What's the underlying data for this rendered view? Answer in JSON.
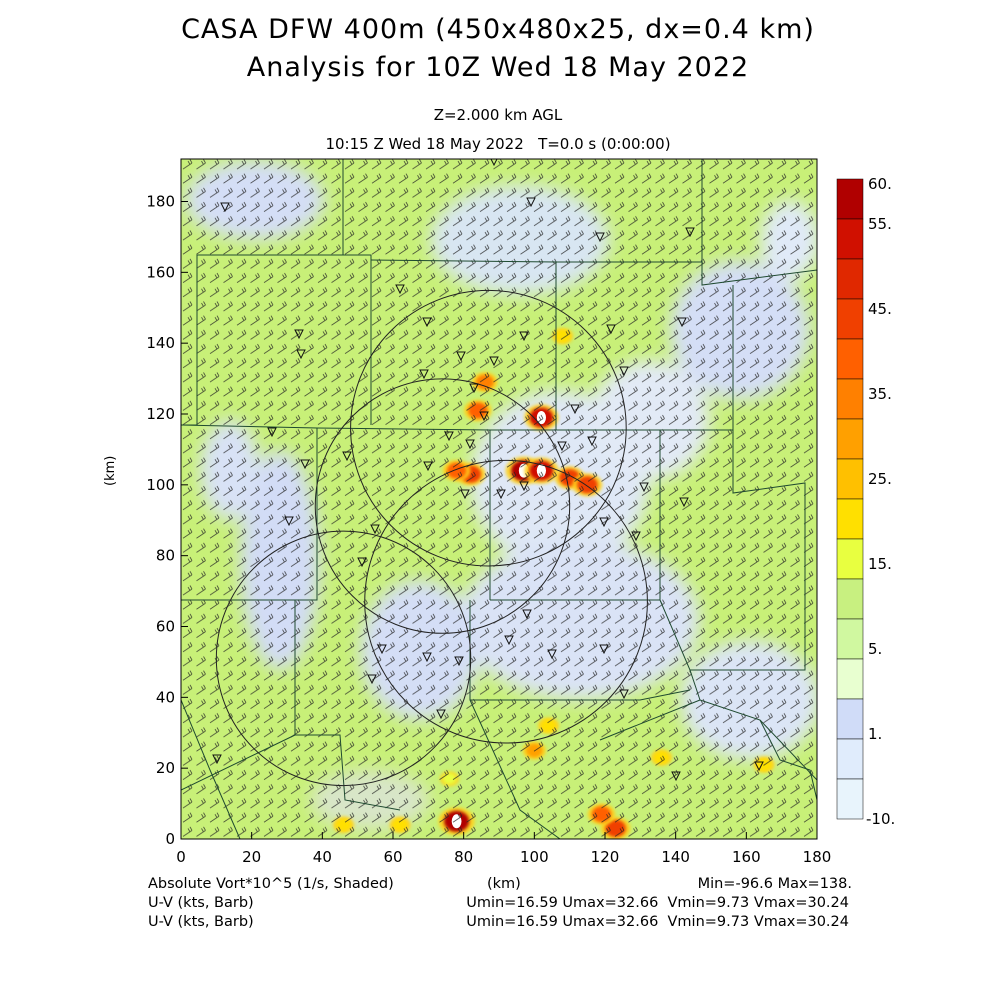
{
  "title": {
    "line1": "CASA DFW 400m (450x480x25, dx=0.4 km)",
    "line2": "Analysis for 10Z Wed 18 May 2022",
    "level": "Z=2.000 km AGL",
    "valid_time": "10:15 Z Wed 18 May 2022   T=0.0 s (0:00:00)"
  },
  "footer": {
    "field": "Absolute Vort*10^5 (1/s, Shaded)",
    "xunit": "(km)",
    "minmax": "Min=-96.6 Max=138.",
    "barb1": "U-V (kts, Barb)",
    "barb2": "U-V (kts, Barb)",
    "uv1": "Umin=16.59 Umax=32.66  Vmin=9.73 Vmax=30.24",
    "uv2": "Umin=16.59 Umax=32.66  Vmin=9.73 Vmax=30.24"
  },
  "chart_data": {
    "type": "heatmap",
    "xlabel": "(km)",
    "ylabel": "(km)",
    "xlim": [
      0,
      180
    ],
    "ylim": [
      0,
      192
    ],
    "xticks": [
      0,
      20,
      40,
      60,
      80,
      100,
      120,
      140,
      160,
      180
    ],
    "yticks": [
      0,
      20,
      40,
      60,
      80,
      100,
      120,
      140,
      160,
      180
    ],
    "colorbar": {
      "labels": [
        "60.",
        "55.",
        "45.",
        "35.",
        "25.",
        "15.",
        "5.",
        "1.",
        "-10."
      ],
      "colors": [
        "#b00000",
        "#d01000",
        "#e02800",
        "#f04000",
        "#ff6000",
        "#ff8000",
        "#ffa000",
        "#ffc000",
        "#ffe000",
        "#e8ff40",
        "#c8f080",
        "#d0f8a0",
        "#e8ffd0",
        "#d0dcf8",
        "#e0ecfc",
        "#e8f4fc"
      ],
      "range": [
        -10,
        60
      ]
    },
    "background_field": "light green with pale blue patches",
    "radar_circles_km": [
      {
        "cx": 87,
        "cy": 116,
        "r": 39
      },
      {
        "cx": 74,
        "cy": 94,
        "r": 36
      },
      {
        "cx": 92,
        "cy": 67,
        "r": 40
      },
      {
        "cx": 46,
        "cy": 51,
        "r": 36
      }
    ],
    "vorticity_hotspots_km": [
      {
        "x": 97,
        "y": 104,
        "v": 60
      },
      {
        "x": 102,
        "y": 104,
        "v": 55
      },
      {
        "x": 102,
        "y": 119,
        "v": 55
      },
      {
        "x": 110,
        "y": 102,
        "v": 45
      },
      {
        "x": 115,
        "y": 100,
        "v": 45
      },
      {
        "x": 82,
        "y": 103,
        "v": 45
      },
      {
        "x": 78,
        "y": 104,
        "v": 40
      },
      {
        "x": 84,
        "y": 121,
        "v": 40
      },
      {
        "x": 86,
        "y": 129,
        "v": 35
      },
      {
        "x": 108,
        "y": 142,
        "v": 25
      },
      {
        "x": 78,
        "y": 5,
        "v": 60
      },
      {
        "x": 123,
        "y": 3,
        "v": 45
      },
      {
        "x": 119,
        "y": 7,
        "v": 40
      },
      {
        "x": 100,
        "y": 25,
        "v": 30
      },
      {
        "x": 104,
        "y": 32,
        "v": 25
      },
      {
        "x": 136,
        "y": 23,
        "v": 25
      },
      {
        "x": 165,
        "y": 21,
        "v": 25
      },
      {
        "x": 62,
        "y": 4,
        "v": 25
      },
      {
        "x": 46,
        "y": 4,
        "v": 25
      },
      {
        "x": 76,
        "y": 17,
        "v": 20
      }
    ]
  }
}
